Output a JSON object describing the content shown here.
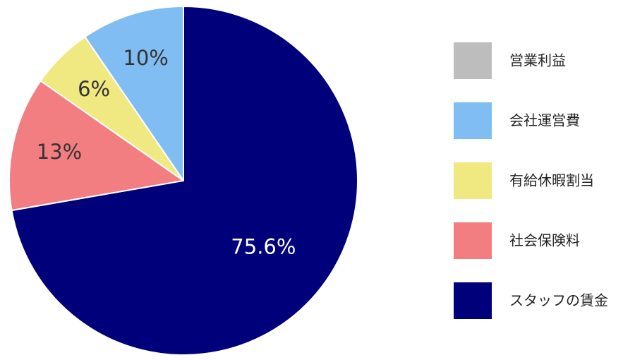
{
  "chart_data": {
    "type": "pie",
    "categories": [
      "営業利益",
      "会社運営費",
      "有給休暇割当",
      "社会保険料",
      "スタッフの賃金"
    ],
    "values": [
      0,
      10,
      6,
      13,
      75.6
    ],
    "value_labels": [
      null,
      "10%",
      "6%",
      "13%",
      "75.6%"
    ],
    "colors": [
      "#bdbdbd",
      "#80bdf2",
      "#f0e982",
      "#f27e82",
      "#00007a"
    ],
    "legend": "right"
  }
}
